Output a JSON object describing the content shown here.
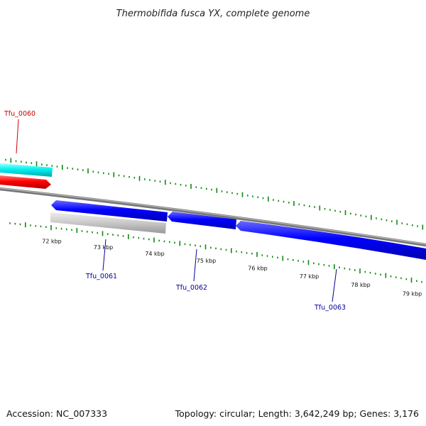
{
  "title": "Thermobifida fusca YX, complete genome",
  "accession": "Accession: NC_007333",
  "summary": "Topology: circular; Length: 3,642,249 bp; Genes: 3,176",
  "colors": {
    "backbone": "#888888",
    "forward_gene": "#ff0000",
    "reverse_gene": "#0000ff",
    "pseudogene": "#cccccc",
    "other_feature": "#00e5e5",
    "ticks": "#118811",
    "forward_label": "#cc0000",
    "reverse_label": "#000099"
  },
  "scale_labels": [
    "72 kbp",
    "73 kbp",
    "74 kbp",
    "75 kbp",
    "76 kbp",
    "77 kbp",
    "78 kbp",
    "79 kbp"
  ],
  "genes": [
    {
      "id": "Tfu_0060",
      "strand": "forward"
    },
    {
      "id": "Tfu_0061",
      "strand": "reverse"
    },
    {
      "id": "Tfu_0062",
      "strand": "reverse"
    },
    {
      "id": "Tfu_0063",
      "strand": "reverse"
    }
  ]
}
